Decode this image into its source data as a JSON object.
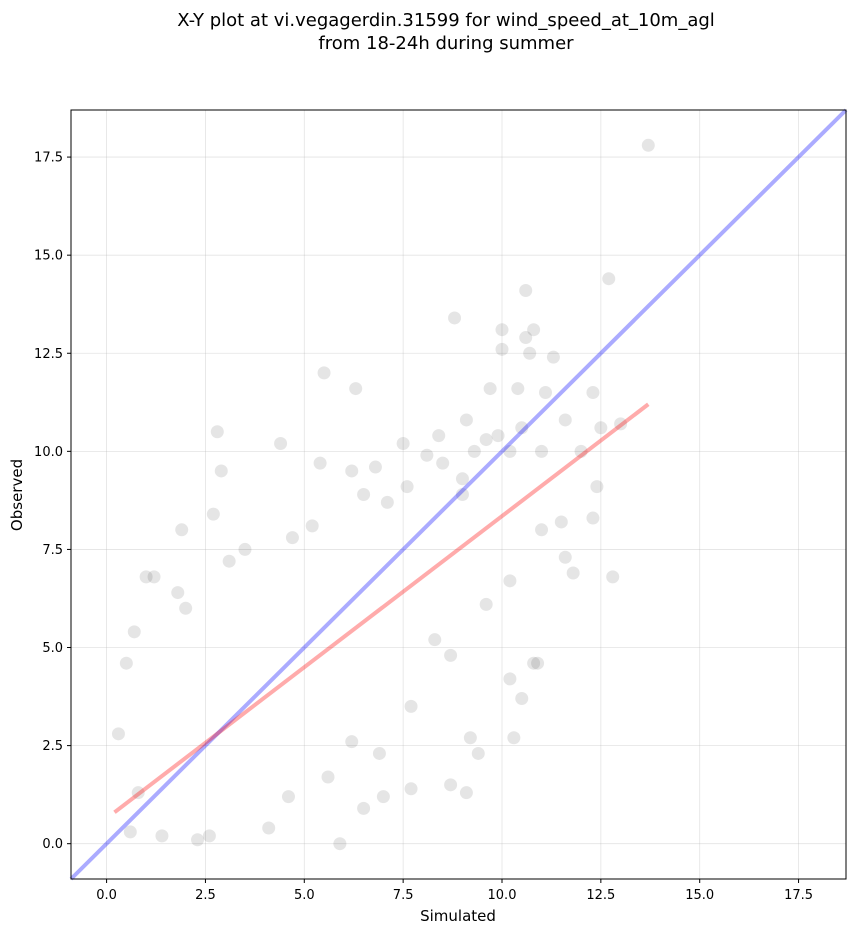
{
  "chart_data": {
    "type": "scatter",
    "title": [
      "X-Y plot at vi.vegagerdin.31599 for wind_speed_at_10m_agl",
      "from 18-24h during summer"
    ],
    "xlabel": "Simulated",
    "ylabel": "Observed",
    "xlim": [
      -0.9,
      18.7
    ],
    "ylim": [
      -0.9,
      18.7
    ],
    "xticks": [
      0.0,
      2.5,
      5.0,
      7.5,
      10.0,
      12.5,
      15.0,
      17.5
    ],
    "yticks": [
      0.0,
      2.5,
      5.0,
      7.5,
      10.0,
      12.5,
      15.0,
      17.5
    ],
    "xtick_labels": [
      "0.0",
      "2.5",
      "5.0",
      "7.5",
      "10.0",
      "12.5",
      "15.0",
      "17.5"
    ],
    "ytick_labels": [
      "0.0",
      "2.5",
      "5.0",
      "7.5",
      "10.0",
      "12.5",
      "15.0",
      "17.5"
    ],
    "grid": true,
    "point_color": "#000000",
    "point_alpha": 0.1,
    "series": [
      {
        "points": [
          [
            13.7,
            17.8
          ],
          [
            12.7,
            14.4
          ],
          [
            10.6,
            14.1
          ],
          [
            8.8,
            13.4
          ],
          [
            10.0,
            13.1
          ],
          [
            10.8,
            13.1
          ],
          [
            10.6,
            12.9
          ],
          [
            10.0,
            12.6
          ],
          [
            10.7,
            12.5
          ],
          [
            11.3,
            12.4
          ],
          [
            5.5,
            12.0
          ],
          [
            6.3,
            11.6
          ],
          [
            9.7,
            11.6
          ],
          [
            10.4,
            11.6
          ],
          [
            12.3,
            11.5
          ],
          [
            11.1,
            11.5
          ],
          [
            2.8,
            10.5
          ],
          [
            4.4,
            10.2
          ],
          [
            7.5,
            10.2
          ],
          [
            8.4,
            10.4
          ],
          [
            10.5,
            10.6
          ],
          [
            12.5,
            10.6
          ],
          [
            11.6,
            10.8
          ],
          [
            13.0,
            10.7
          ],
          [
            9.1,
            10.8
          ],
          [
            9.6,
            10.3
          ],
          [
            10.2,
            10.0
          ],
          [
            11.0,
            10.0
          ],
          [
            12.0,
            10.0
          ],
          [
            2.9,
            9.5
          ],
          [
            5.4,
            9.7
          ],
          [
            6.2,
            9.5
          ],
          [
            6.8,
            9.6
          ],
          [
            8.1,
            9.9
          ],
          [
            9.0,
            9.3
          ],
          [
            12.4,
            9.1
          ],
          [
            11.5,
            8.2
          ],
          [
            12.3,
            8.3
          ],
          [
            11.0,
            8.0
          ],
          [
            9.0,
            8.9
          ],
          [
            1.0,
            6.8
          ],
          [
            1.2,
            6.8
          ],
          [
            1.9,
            8.0
          ],
          [
            2.7,
            8.4
          ],
          [
            12.8,
            6.8
          ],
          [
            10.2,
            4.2
          ],
          [
            10.8,
            4.6
          ],
          [
            10.9,
            4.6
          ],
          [
            10.5,
            3.7
          ],
          [
            10.3,
            2.7
          ],
          [
            9.2,
            2.7
          ],
          [
            9.4,
            2.3
          ],
          [
            8.7,
            1.5
          ],
          [
            9.1,
            1.3
          ],
          [
            5.9,
            0.0
          ],
          [
            7.7,
            1.4
          ],
          [
            7.0,
            1.2
          ],
          [
            6.5,
            0.9
          ],
          [
            2.3,
            0.1
          ],
          [
            2.6,
            0.2
          ],
          [
            0.6,
            0.3
          ],
          [
            1.4,
            0.2
          ],
          [
            0.3,
            2.8
          ],
          [
            0.8,
            1.3
          ],
          [
            0.5,
            4.6
          ],
          [
            0.7,
            5.4
          ],
          [
            1.8,
            6.4
          ],
          [
            2.0,
            6.0
          ],
          [
            3.1,
            7.2
          ],
          [
            3.5,
            7.5
          ],
          [
            4.7,
            7.8
          ],
          [
            5.2,
            8.1
          ],
          [
            6.5,
            8.9
          ],
          [
            7.1,
            8.7
          ],
          [
            7.6,
            9.1
          ],
          [
            8.5,
            9.7
          ],
          [
            9.3,
            10.0
          ],
          [
            9.9,
            10.4
          ],
          [
            11.6,
            7.3
          ],
          [
            11.8,
            6.9
          ],
          [
            10.2,
            6.7
          ],
          [
            9.6,
            6.1
          ],
          [
            8.3,
            5.2
          ],
          [
            8.7,
            4.8
          ],
          [
            7.7,
            3.5
          ],
          [
            6.9,
            2.3
          ],
          [
            6.2,
            2.6
          ],
          [
            5.6,
            1.7
          ],
          [
            4.6,
            1.2
          ],
          [
            4.1,
            0.4
          ]
        ]
      }
    ],
    "reference_line": {
      "color": "#0000ff",
      "alpha": 0.33,
      "from": [
        -0.9,
        -0.9
      ],
      "to": [
        18.7,
        18.7
      ]
    },
    "fit_line": {
      "color": "#ff0000",
      "alpha": 0.33,
      "from": [
        0.2,
        0.8
      ],
      "to": [
        13.7,
        11.2
      ]
    }
  }
}
